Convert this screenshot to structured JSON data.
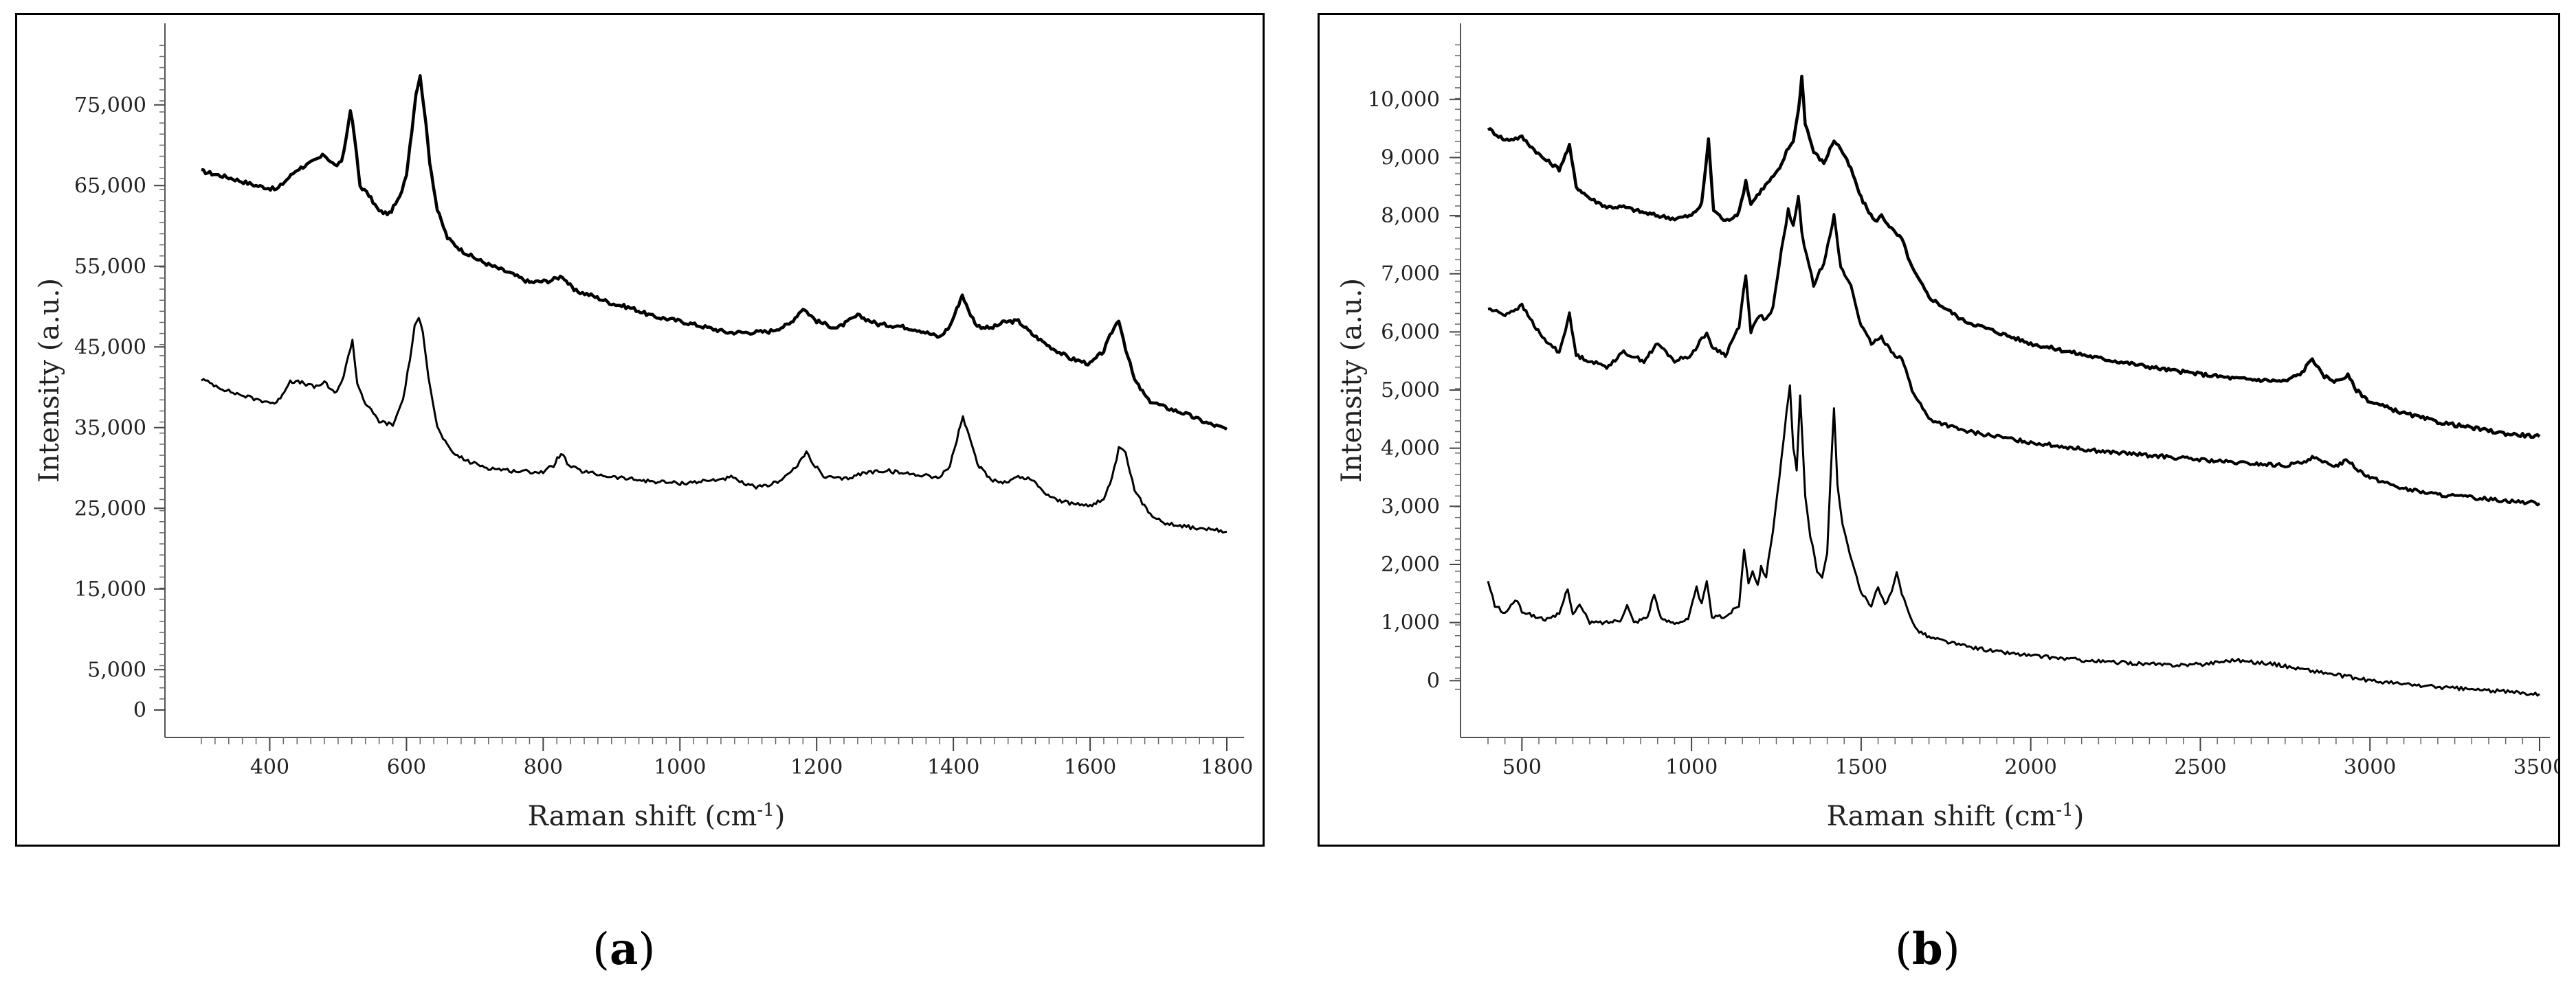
{
  "chart_data": [
    {
      "id": "a",
      "type": "line",
      "panel_label": "a",
      "xlabel": "Raman shift (cm",
      "xlabel_sup": "-1",
      "xlabel_end": ")",
      "ylabel": "Intensity (a.u.)",
      "xlim": [
        300,
        1800
      ],
      "ylim": [
        0,
        80000
      ],
      "x_ticks": [
        400,
        600,
        800,
        1000,
        1200,
        1400,
        1600,
        1800
      ],
      "y_ticks": [
        0,
        5000,
        15000,
        25000,
        35000,
        45000,
        55000,
        65000,
        75000
      ],
      "x_tick_labels": [
        "400",
        "600",
        "800",
        "1000",
        "1200",
        "1400",
        "1600",
        "1800"
      ],
      "y_tick_labels": [
        "0",
        "5,000",
        "15,000",
        "25,000",
        "35,000",
        "45,000",
        "55,000",
        "65,000",
        "75,000"
      ],
      "grid": false,
      "series": [
        {
          "stroke": "thick",
          "x": [
            300,
            340,
            380,
            410,
            440,
            460,
            480,
            495,
            505,
            512,
            518,
            524,
            532,
            545,
            560,
            575,
            590,
            600,
            608,
            614,
            620,
            626,
            634,
            645,
            660,
            680,
            700,
            720,
            750,
            780,
            810,
            828,
            845,
            870,
            900,
            930,
            960,
            1000,
            1040,
            1070,
            1100,
            1130,
            1160,
            1180,
            1200,
            1230,
            1260,
            1290,
            1320,
            1350,
            1380,
            1395,
            1405,
            1413,
            1422,
            1435,
            1455,
            1475,
            1495,
            1515,
            1540,
            1570,
            1600,
            1620,
            1632,
            1642,
            1652,
            1665,
            1685,
            1710,
            1740,
            1770,
            1800
          ],
          "y": [
            66800,
            66000,
            65000,
            64500,
            67000,
            67800,
            68800,
            67500,
            67800,
            71000,
            74500,
            71000,
            65000,
            63800,
            61800,
            61500,
            63500,
            66500,
            72000,
            76500,
            78500,
            74500,
            68000,
            62000,
            58500,
            57000,
            56000,
            55200,
            54200,
            53000,
            53200,
            53800,
            52000,
            51400,
            50400,
            49800,
            48800,
            48200,
            47400,
            46800,
            46800,
            46900,
            47800,
            49800,
            48200,
            47300,
            48900,
            47800,
            47600,
            47100,
            46200,
            47600,
            49700,
            51500,
            49500,
            47600,
            47300,
            48100,
            48200,
            46600,
            45100,
            43600,
            42900,
            44500,
            46900,
            48400,
            44800,
            40900,
            38400,
            37500,
            36700,
            35600,
            34800
          ]
        },
        {
          "stroke": "thin",
          "x": [
            300,
            340,
            380,
            410,
            430,
            450,
            465,
            480,
            495,
            508,
            515,
            521,
            528,
            540,
            560,
            580,
            595,
            605,
            612,
            618,
            624,
            632,
            645,
            665,
            690,
            720,
            760,
            800,
            815,
            826,
            838,
            860,
            900,
            950,
            1000,
            1040,
            1075,
            1100,
            1120,
            1140,
            1160,
            1175,
            1185,
            1195,
            1210,
            1240,
            1270,
            1300,
            1330,
            1360,
            1380,
            1395,
            1405,
            1414,
            1423,
            1435,
            1455,
            1475,
            1495,
            1515,
            1530,
            1550,
            1570,
            1600,
            1620,
            1632,
            1642,
            1652,
            1665,
            1685,
            1710,
            1750,
            1800
          ],
          "y": [
            41000,
            39500,
            38500,
            38000,
            40800,
            40500,
            40000,
            40600,
            39200,
            41200,
            44000,
            45800,
            40500,
            38000,
            35800,
            35300,
            38500,
            43500,
            47500,
            48400,
            47000,
            41500,
            35000,
            32000,
            30800,
            30000,
            29600,
            29500,
            30300,
            31900,
            30200,
            29500,
            28900,
            28400,
            28100,
            28400,
            28800,
            27800,
            27600,
            28200,
            29300,
            30600,
            32000,
            30600,
            28900,
            28600,
            29400,
            29700,
            29300,
            29100,
            28800,
            30300,
            33500,
            36400,
            33800,
            30500,
            28600,
            28200,
            28900,
            28600,
            27200,
            26100,
            25600,
            25400,
            26100,
            28600,
            32400,
            31800,
            27200,
            24500,
            23200,
            22600,
            22100
          ]
        }
      ]
    },
    {
      "id": "b",
      "type": "line",
      "panel_label": "b",
      "xlabel": "Raman shift (cm",
      "xlabel_sup": "-1",
      "xlabel_end": ")",
      "ylabel": "Intensity (a.u.)",
      "xlim": [
        400,
        3500
      ],
      "ylim": [
        -150,
        10600
      ],
      "x_ticks": [
        500,
        1000,
        1500,
        2000,
        2500,
        3000,
        3500
      ],
      "y_ticks": [
        0,
        1000,
        2000,
        3000,
        4000,
        5000,
        6000,
        7000,
        8000,
        9000,
        10000
      ],
      "x_tick_labels": [
        "500",
        "1000",
        "1500",
        "2000",
        "2500",
        "3000",
        "3500"
      ],
      "y_tick_labels": [
        "0",
        "1,000",
        "2,000",
        "3,000",
        "4,000",
        "5,000",
        "6,000",
        "7,000",
        "8,000",
        "9,000",
        "10,000"
      ],
      "grid": false,
      "series": [
        {
          "stroke": "thick",
          "x": [
            400,
            450,
            500,
            560,
            610,
            640,
            660,
            700,
            750,
            800,
            860,
            900,
            950,
            1000,
            1030,
            1050,
            1065,
            1100,
            1140,
            1160,
            1175,
            1200,
            1230,
            1260,
            1280,
            1300,
            1315,
            1325,
            1335,
            1360,
            1390,
            1420,
            1440,
            1470,
            1500,
            1540,
            1560,
            1600,
            1620,
            1650,
            1700,
            1800,
            1900,
            2000,
            2200,
            2400,
            2600,
            2750,
            2800,
            2830,
            2860,
            2900,
            2935,
            2960,
            3000,
            3100,
            3200,
            3300,
            3400,
            3500
          ],
          "y": [
            9500,
            9300,
            9350,
            9000,
            8800,
            9200,
            8500,
            8300,
            8150,
            8150,
            8050,
            8000,
            7950,
            8000,
            8200,
            9300,
            8100,
            7900,
            8050,
            8600,
            8200,
            8400,
            8600,
            8800,
            9100,
            9300,
            9800,
            10400,
            9600,
            9100,
            8900,
            9300,
            9150,
            8800,
            8300,
            7900,
            8000,
            7700,
            7600,
            7100,
            6600,
            6200,
            6000,
            5800,
            5550,
            5350,
            5200,
            5150,
            5300,
            5550,
            5250,
            5150,
            5250,
            5000,
            4800,
            4600,
            4450,
            4350,
            4250,
            4200
          ]
        },
        {
          "stroke": "medium",
          "x": [
            400,
            450,
            500,
            560,
            610,
            640,
            660,
            700,
            750,
            800,
            860,
            900,
            950,
            1000,
            1030,
            1045,
            1060,
            1100,
            1140,
            1160,
            1175,
            1200,
            1220,
            1240,
            1265,
            1285,
            1300,
            1315,
            1325,
            1340,
            1360,
            1390,
            1420,
            1440,
            1470,
            1500,
            1530,
            1560,
            1600,
            1620,
            1650,
            1700,
            1800,
            1900,
            2000,
            2200,
            2400,
            2600,
            2750,
            2800,
            2830,
            2860,
            2900,
            2935,
            2960,
            3000,
            3100,
            3200,
            3300,
            3400,
            3500
          ],
          "y": [
            6400,
            6300,
            6450,
            5900,
            5650,
            6300,
            5600,
            5500,
            5400,
            5650,
            5500,
            5800,
            5500,
            5600,
            5900,
            5950,
            5750,
            5600,
            6100,
            7000,
            6000,
            6300,
            6200,
            6400,
            7400,
            8100,
            7800,
            8350,
            7700,
            7300,
            6800,
            7200,
            8000,
            7100,
            6800,
            6100,
            5800,
            5900,
            5600,
            5550,
            5000,
            4500,
            4300,
            4200,
            4100,
            3950,
            3850,
            3750,
            3700,
            3750,
            3850,
            3750,
            3700,
            3800,
            3650,
            3500,
            3300,
            3200,
            3150,
            3100,
            3050
          ]
        },
        {
          "stroke": "thin",
          "x": [
            400,
            420,
            450,
            480,
            500,
            540,
            580,
            610,
            635,
            650,
            670,
            700,
            750,
            790,
            810,
            830,
            870,
            890,
            910,
            950,
            990,
            1015,
            1030,
            1045,
            1060,
            1100,
            1140,
            1155,
            1168,
            1180,
            1195,
            1205,
            1220,
            1240,
            1265,
            1280,
            1290,
            1300,
            1310,
            1320,
            1335,
            1350,
            1370,
            1385,
            1400,
            1410,
            1420,
            1430,
            1445,
            1460,
            1480,
            1500,
            1530,
            1550,
            1570,
            1590,
            1605,
            1620,
            1640,
            1660,
            1700,
            1800,
            1900,
            2000,
            2100,
            2200,
            2300,
            2400,
            2500,
            2550,
            2600,
            2650,
            2700,
            2750,
            2800,
            2900,
            3000,
            3100,
            3200,
            3300,
            3400,
            3500
          ],
          "y": [
            1700,
            1300,
            1150,
            1400,
            1200,
            1100,
            1050,
            1150,
            1600,
            1150,
            1300,
            1000,
            1000,
            1050,
            1300,
            1000,
            1100,
            1500,
            1050,
            1000,
            1050,
            1600,
            1300,
            1700,
            1100,
            1100,
            1300,
            2250,
            1700,
            1900,
            1650,
            1950,
            1800,
            2600,
            3800,
            4600,
            5050,
            4000,
            3600,
            4900,
            3200,
            2500,
            1900,
            1800,
            2200,
            3500,
            4700,
            3400,
            2700,
            2350,
            1900,
            1500,
            1300,
            1600,
            1300,
            1500,
            1850,
            1500,
            1200,
            900,
            750,
            600,
            500,
            430,
            380,
            330,
            300,
            270,
            280,
            320,
            360,
            320,
            300,
            250,
            200,
            100,
            0,
            -60,
            -110,
            -150,
            -190,
            -230
          ]
        }
      ]
    }
  ],
  "captions": {
    "a": "a",
    "b": "b"
  }
}
